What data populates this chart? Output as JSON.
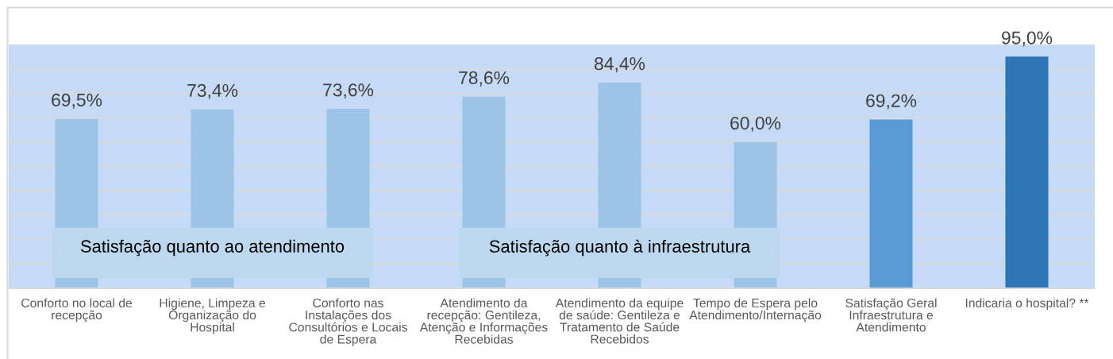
{
  "chart_data": {
    "type": "bar",
    "categories": [
      "Conforto no local de\nrecepção",
      "Higiene, Limpeza e\nOrganização do\nHospital",
      "Conforto nas\nInstalações dos\nConsultórios e Locais\nde Espera",
      "Atendimento da\nrecepção: Gentileza,\nAtenção e Informações\nRecebidas",
      "Atendimento da equipe\nde saúde: Gentileza e\nTratamento de Saúde\nRecebidos",
      "Tempo de Espera pelo\nAtendimento/Internação",
      "Satisfação Geral\nInfraestrutura e\nAtendimento",
      "Indicaria o hospital? **"
    ],
    "values": [
      69.5,
      73.4,
      73.6,
      78.6,
      84.4,
      60.0,
      69.2,
      95.0
    ],
    "colors": [
      "#9dc3e6",
      "#9dc3e6",
      "#9dc3e6",
      "#9dc3e6",
      "#9dc3e6",
      "#9dc3e6",
      "#5b9bd5",
      "#2e75b6"
    ],
    "value_labels": [
      "69,5%",
      "73,4%",
      "73,6%",
      "78,6%",
      "84,4%",
      "60,0%",
      "69,2%",
      "95,0%"
    ],
    "ylim": [
      0,
      100
    ],
    "yticks": [
      {
        "value": 0,
        "label": null
      },
      {
        "value": 10,
        "label": null
      },
      {
        "value": 20,
        "label": null
      },
      {
        "value": 30,
        "label": null
      },
      {
        "value": 40,
        "label": null
      },
      {
        "value": 50,
        "label": null
      },
      {
        "value": 60,
        "label": null
      },
      {
        "value": 70,
        "label": null
      },
      {
        "value": 80,
        "label": null
      },
      {
        "value": 90,
        "label": null
      },
      {
        "value": 100,
        "label": null
      }
    ],
    "grid": "y",
    "tick_labels": "x",
    "annotations": [
      "Satisfação quanto ao atendimento",
      "Satisfação quanto à infraestrutura"
    ]
  }
}
